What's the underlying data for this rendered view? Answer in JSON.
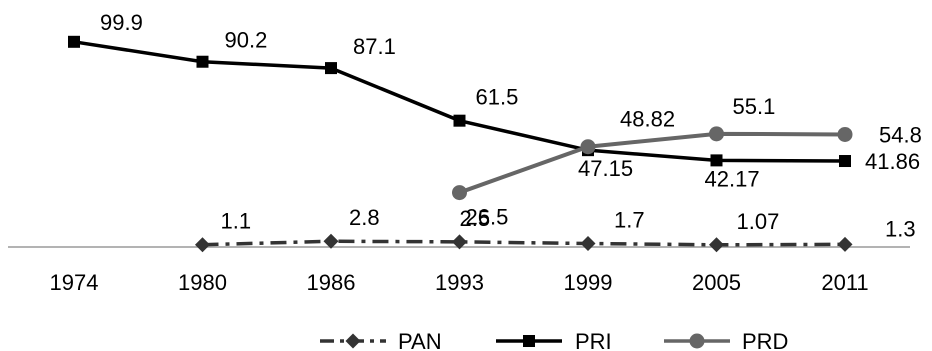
{
  "chart_data": {
    "type": "line",
    "categories": [
      "1974",
      "1980",
      "1986",
      "1993",
      "1999",
      "2005",
      "2011"
    ],
    "series": [
      {
        "name": "PAN",
        "values": [
          null,
          1.1,
          2.8,
          2.5,
          1.7,
          1.07,
          1.3
        ],
        "labels": [
          "",
          "1.1",
          "2.8",
          "2.5",
          "1.7",
          "1.07",
          "1.3"
        ],
        "color": "#333333",
        "line_style": "dash-dot",
        "marker": "diamond"
      },
      {
        "name": "PRI",
        "values": [
          99.9,
          90.2,
          87.1,
          61.5,
          47.15,
          42.17,
          41.86
        ],
        "labels": [
          "99.9",
          "90.2",
          "87.1",
          "61.5",
          "47.15",
          "42.17",
          "41.86"
        ],
        "color": "#000000",
        "line_style": "solid",
        "marker": "square"
      },
      {
        "name": "PRD",
        "values": [
          null,
          null,
          null,
          26.5,
          48.82,
          55.1,
          54.8
        ],
        "labels": [
          "",
          "",
          "",
          "26.5",
          "48.82",
          "55.1",
          "54.8"
        ],
        "color": "#666666",
        "line_style": "solid",
        "marker": "circle"
      }
    ],
    "ylim": [
      0,
      100
    ],
    "grid": false,
    "legend_position": "bottom"
  }
}
